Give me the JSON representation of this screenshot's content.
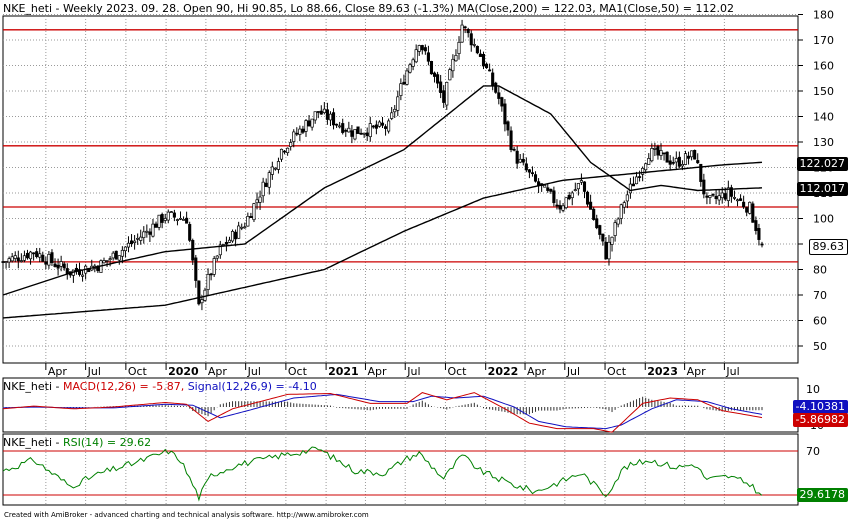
{
  "price_panel": {
    "header": {
      "symbol": "NKE_heti",
      "info": " - Weekly 2023. 09. 28. Open 90, Hi 90.85, Lo 88.66, Close 89.63 (-1.3%) ",
      "ma200_label": "MA(Close,200) = 122.03",
      "ma50_label": "MA1(Close,50) = 112.02"
    },
    "tags": {
      "ma200": "122.027",
      "ma50": "112.017",
      "close": "89.63"
    }
  },
  "macd_panel": {
    "header": {
      "symbol": "NKE_heti",
      "macd_label": "MACD(12,26) = -5.87,",
      "signal_label": "Signal(12,26,9) = -4.10"
    },
    "tags": {
      "signal": "-4.10381",
      "macd": "-5.86982"
    }
  },
  "rsi_panel": {
    "header": {
      "symbol": "NKE_heti",
      "rsi_label": "RSI(14) = 29.62"
    },
    "tags": {
      "rsi": "29.6178"
    }
  },
  "footer": "Created with AmiBroker - advanced charting and technical analysis software. http://www.amibroker.com",
  "colors": {
    "up": "#000000",
    "down": "#000000",
    "ma": "#000000",
    "hline": "#cc0000",
    "macd": "#cc0000",
    "signal": "#1010c0",
    "rsi": "#008000",
    "ma200_tag": "#000000",
    "ma50_tag": "#000000",
    "close_tag": "#000000",
    "signal_tag": "#1010c0",
    "macd_tag": "#cc0000",
    "rsi_tag": "#008000"
  },
  "chart_data": [
    {
      "type": "candlestick",
      "title": "NKE_heti - Weekly",
      "y_ticks": [
        50,
        60,
        70,
        80,
        90,
        100,
        110,
        120,
        130,
        140,
        150,
        160,
        170,
        180
      ],
      "x_tick_labels": [
        {
          "label": "Apr",
          "date": "2019-04-01"
        },
        {
          "label": "Jul",
          "date": "2019-07-01"
        },
        {
          "label": "Oct",
          "date": "2019-10-01"
        },
        {
          "label": "2020",
          "date": "2020-01-01"
        },
        {
          "label": "Apr",
          "date": "2020-04-01"
        },
        {
          "label": "Jul",
          "date": "2020-07-01"
        },
        {
          "label": "Oct",
          "date": "2020-10-01"
        },
        {
          "label": "2021",
          "date": "2021-01-01"
        },
        {
          "label": "Apr",
          "date": "2021-04-01"
        },
        {
          "label": "Jul",
          "date": "2021-07-01"
        },
        {
          "label": "Oct",
          "date": "2021-10-01"
        },
        {
          "label": "2022",
          "date": "2022-01-01"
        },
        {
          "label": "Apr",
          "date": "2022-04-01"
        },
        {
          "label": "Jul",
          "date": "2022-07-01"
        },
        {
          "label": "Oct",
          "date": "2022-10-01"
        },
        {
          "label": "2023",
          "date": "2023-01-01"
        },
        {
          "label": "Apr",
          "date": "2023-04-01"
        },
        {
          "label": "Jul",
          "date": "2023-07-01"
        }
      ],
      "horizontal_lines": [
        174,
        128.5,
        104.5,
        83
      ],
      "close_anchors": [
        [
          "2018-12-24",
          83
        ],
        [
          "2019-03-04",
          87
        ],
        [
          "2019-05-27",
          79
        ],
        [
          "2019-08-05",
          82
        ],
        [
          "2019-10-28",
          92
        ],
        [
          "2019-12-30",
          101
        ],
        [
          "2020-02-17",
          100
        ],
        [
          "2020-03-16",
          65
        ],
        [
          "2020-03-23",
          70
        ],
        [
          "2020-05-04",
          88
        ],
        [
          "2020-06-29",
          98
        ],
        [
          "2020-09-21",
          127
        ],
        [
          "2020-12-14",
          142
        ],
        [
          "2021-03-01",
          134
        ],
        [
          "2021-05-24",
          136
        ],
        [
          "2021-06-28",
          155
        ],
        [
          "2021-08-02",
          170
        ],
        [
          "2021-09-27",
          146
        ],
        [
          "2021-11-08",
          176
        ],
        [
          "2021-12-20",
          164
        ],
        [
          "2022-01-31",
          147
        ],
        [
          "2022-03-07",
          125
        ],
        [
          "2022-04-25",
          114
        ],
        [
          "2022-06-20",
          105
        ],
        [
          "2022-08-08",
          114
        ],
        [
          "2022-10-03",
          86
        ],
        [
          "2022-11-14",
          107
        ],
        [
          "2023-01-09",
          126
        ],
        [
          "2023-03-13",
          122
        ],
        [
          "2023-04-24",
          125
        ],
        [
          "2023-05-22",
          106
        ],
        [
          "2023-07-10",
          110
        ],
        [
          "2023-08-28",
          104
        ],
        [
          "2023-09-25",
          89.63
        ]
      ],
      "ma50_anchors": [
        [
          "2018-12-24",
          70
        ],
        [
          "2019-06-03",
          79
        ],
        [
          "2019-12-30",
          87
        ],
        [
          "2020-06-29",
          90
        ],
        [
          "2020-12-28",
          112
        ],
        [
          "2021-06-28",
          127
        ],
        [
          "2021-12-27",
          152
        ],
        [
          "2022-01-31",
          152
        ],
        [
          "2022-05-30",
          141
        ],
        [
          "2022-08-29",
          122
        ],
        [
          "2022-11-28",
          111
        ],
        [
          "2023-02-06",
          113
        ],
        [
          "2023-05-01",
          111
        ],
        [
          "2023-09-25",
          112.02
        ]
      ],
      "ma200_anchors": [
        [
          "2018-12-24",
          61
        ],
        [
          "2019-12-30",
          66
        ],
        [
          "2020-12-28",
          80
        ],
        [
          "2021-06-28",
          95
        ],
        [
          "2021-12-27",
          108
        ],
        [
          "2022-06-27",
          115
        ],
        [
          "2022-12-26",
          118
        ],
        [
          "2023-06-26",
          121
        ],
        [
          "2023-09-25",
          122.03
        ]
      ],
      "last": {
        "open": 90,
        "high": 90.85,
        "low": 88.66,
        "close": 89.63
      }
    },
    {
      "type": "line",
      "title": "NKE_heti - MACD(12,26), Signal(12,26,9)",
      "y_ticks": [
        10,
        -10
      ],
      "series": [
        {
          "name": "MACD(12,26)",
          "anchors": [
            [
              "2018-12-24",
              -1
            ],
            [
              "2019-03-04",
              0.5
            ],
            [
              "2019-06-03",
              -1
            ],
            [
              "2019-09-02",
              0
            ],
            [
              "2019-12-30",
              2.5
            ],
            [
              "2020-02-17",
              1.5
            ],
            [
              "2020-04-06",
              -8
            ],
            [
              "2020-06-01",
              -1
            ],
            [
              "2020-10-05",
              7
            ],
            [
              "2021-01-11",
              7.5
            ],
            [
              "2021-04-12",
              2
            ],
            [
              "2021-07-05",
              2
            ],
            [
              "2021-08-09",
              8
            ],
            [
              "2021-10-04",
              4
            ],
            [
              "2021-12-06",
              8
            ],
            [
              "2022-02-14",
              -1
            ],
            [
              "2022-04-11",
              -9
            ],
            [
              "2022-06-13",
              -12
            ],
            [
              "2022-09-05",
              -12
            ],
            [
              "2022-10-17",
              -14
            ],
            [
              "2022-12-26",
              2
            ],
            [
              "2023-02-27",
              5
            ],
            [
              "2023-05-01",
              4
            ],
            [
              "2023-06-26",
              -2
            ],
            [
              "2023-09-25",
              -5.87
            ]
          ]
        },
        {
          "name": "Signal(12,26,9)",
          "anchors": [
            [
              "2018-12-24",
              -0.5
            ],
            [
              "2019-03-04",
              0
            ],
            [
              "2019-06-03",
              -0.5
            ],
            [
              "2019-09-02",
              -0.5
            ],
            [
              "2019-12-30",
              1.5
            ],
            [
              "2020-03-02",
              1
            ],
            [
              "2020-05-04",
              -6
            ],
            [
              "2020-07-06",
              -2
            ],
            [
              "2020-10-19",
              5
            ],
            [
              "2021-01-25",
              7
            ],
            [
              "2021-05-03",
              3
            ],
            [
              "2021-07-19",
              3
            ],
            [
              "2021-08-30",
              6
            ],
            [
              "2021-10-25",
              5
            ],
            [
              "2021-12-27",
              6
            ],
            [
              "2022-03-07",
              0
            ],
            [
              "2022-05-02",
              -8
            ],
            [
              "2022-07-04",
              -11
            ],
            [
              "2022-10-03",
              -12
            ],
            [
              "2022-11-07",
              -10
            ],
            [
              "2023-01-16",
              -1
            ],
            [
              "2023-03-13",
              4
            ],
            [
              "2023-05-22",
              3
            ],
            [
              "2023-07-17",
              -1
            ],
            [
              "2023-09-25",
              -4.1
            ]
          ]
        }
      ]
    },
    {
      "type": "line",
      "title": "NKE_heti - RSI(14)",
      "y_ticks": [
        70
      ],
      "horizontal_lines": [
        70,
        30
      ],
      "series": [
        {
          "name": "RSI(14)",
          "anchors": [
            [
              "2018-12-24",
              52
            ],
            [
              "2019-03-04",
              62
            ],
            [
              "2019-05-27",
              38
            ],
            [
              "2019-08-05",
              50
            ],
            [
              "2019-10-28",
              60
            ],
            [
              "2020-01-06",
              70
            ],
            [
              "2020-02-03",
              62
            ],
            [
              "2020-03-16",
              28
            ],
            [
              "2020-04-13",
              48
            ],
            [
              "2020-06-08",
              57
            ],
            [
              "2020-09-21",
              66
            ],
            [
              "2020-12-14",
              72
            ],
            [
              "2021-03-08",
              52
            ],
            [
              "2021-05-17",
              50
            ],
            [
              "2021-06-28",
              62
            ],
            [
              "2021-08-02",
              68
            ],
            [
              "2021-09-27",
              45
            ],
            [
              "2021-11-08",
              66
            ],
            [
              "2021-12-20",
              52
            ],
            [
              "2022-02-28",
              40
            ],
            [
              "2022-04-25",
              33
            ],
            [
              "2022-06-20",
              42
            ],
            [
              "2022-08-08",
              50
            ],
            [
              "2022-10-03",
              30
            ],
            [
              "2022-11-14",
              55
            ],
            [
              "2023-01-09",
              62
            ],
            [
              "2023-03-13",
              55
            ],
            [
              "2023-04-24",
              58
            ],
            [
              "2023-05-22",
              44
            ],
            [
              "2023-07-10",
              47
            ],
            [
              "2023-08-28",
              40
            ],
            [
              "2023-09-25",
              29.62
            ]
          ]
        }
      ]
    }
  ]
}
